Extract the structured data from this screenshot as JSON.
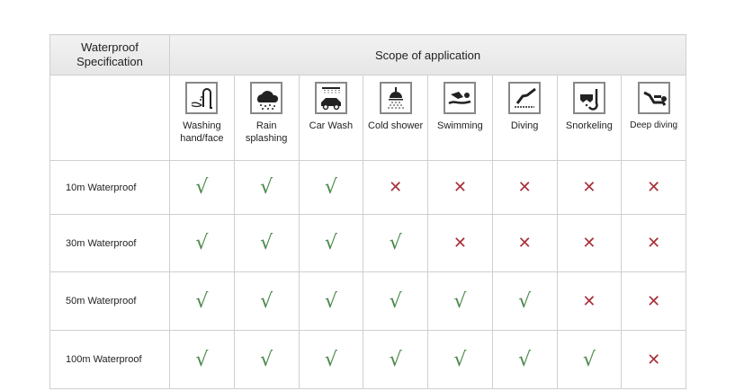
{
  "header": {
    "spec": "Waterproof Specification",
    "scope": "Scope of application"
  },
  "activities": [
    {
      "label": "Washing hand/face",
      "icon": "faucet-hand-icon"
    },
    {
      "label": "Rain splashing",
      "icon": "rain-cloud-icon"
    },
    {
      "label": "Car Wash",
      "icon": "car-wash-icon"
    },
    {
      "label": "Cold shower",
      "icon": "shower-icon"
    },
    {
      "label": "Swimming",
      "icon": "swimmer-icon"
    },
    {
      "label": "Diving",
      "icon": "diver-icon"
    },
    {
      "label": "Snorkeling",
      "icon": "snorkel-mask-icon"
    },
    {
      "label": "Deep diving",
      "icon": "scuba-diver-icon"
    }
  ],
  "symbols": {
    "yes": "√",
    "no": "✕"
  },
  "colors": {
    "yes": "#4b8a4b",
    "no": "#a8323a",
    "header_bg": "#ebebeb",
    "border": "#cfcfcf"
  },
  "rows": [
    {
      "label": "10m Waterproof",
      "values": [
        true,
        true,
        true,
        false,
        false,
        false,
        false,
        false
      ]
    },
    {
      "label": "30m Waterproof",
      "values": [
        true,
        true,
        true,
        true,
        false,
        false,
        false,
        false
      ]
    },
    {
      "label": "50m Waterproof",
      "values": [
        true,
        true,
        true,
        true,
        true,
        true,
        false,
        false
      ]
    },
    {
      "label": "100m Waterproof",
      "values": [
        true,
        true,
        true,
        true,
        true,
        true,
        true,
        false
      ]
    }
  ]
}
